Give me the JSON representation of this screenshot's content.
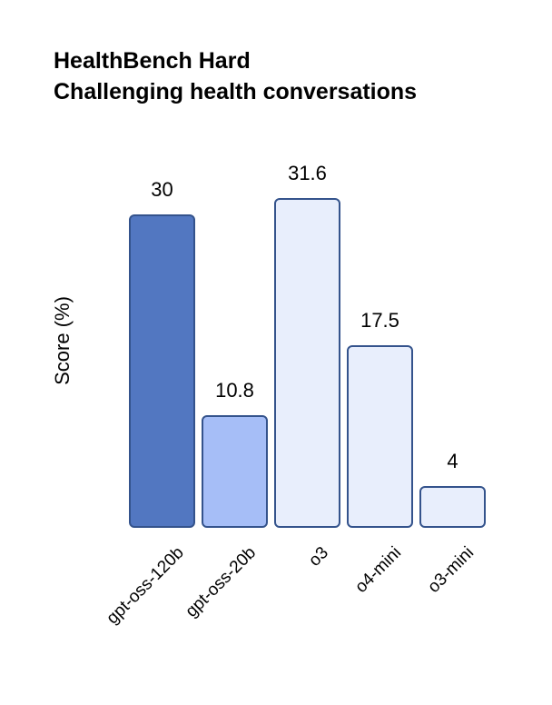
{
  "title": {
    "line1": "HealthBench Hard",
    "line2": "Challenging health conversations"
  },
  "chart_data": {
    "type": "bar",
    "title": "HealthBench Hard",
    "subtitle": "Challenging health conversations",
    "categories": [
      "gpt-oss-120b",
      "gpt-oss-20b",
      "o3",
      "o4-mini",
      "o3-mini"
    ],
    "values": [
      30,
      10.8,
      31.6,
      17.5,
      4
    ],
    "value_labels": [
      "30",
      "10.8",
      "31.6",
      "17.5",
      "4"
    ],
    "xlabel": "",
    "ylabel": "Score (%)",
    "ylim": [
      0,
      33.5
    ],
    "grid": false,
    "legend": false,
    "x_tick_rotation_deg": 45,
    "bar_fill_colors": [
      "#5277c1",
      "#a6bef7",
      "#e8eefc",
      "#e8eefc",
      "#e8eefc"
    ],
    "bar_edge_color": "#34538c",
    "background_color": "#ffffff",
    "text_color": "#000000"
  }
}
